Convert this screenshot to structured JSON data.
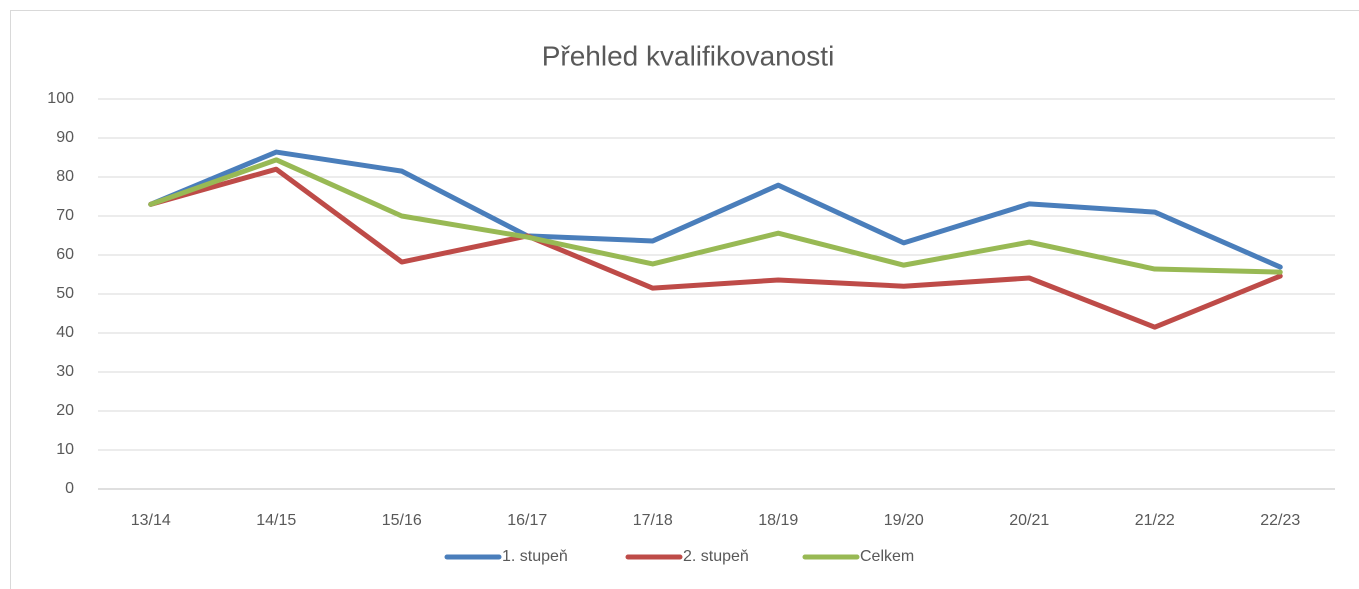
{
  "chart_data": {
    "type": "line",
    "title": "Přehled kvalifikovanosti",
    "categories": [
      "13/14",
      "14/15",
      "15/16",
      "16/17",
      "17/18",
      "18/19",
      "19/20",
      "20/21",
      "21/22",
      "22/23"
    ],
    "series": [
      {
        "name": "1. stupeň",
        "color": "#4a7ebb",
        "values": [
          73,
          86.4,
          81.5,
          64.9,
          63.6,
          77.9,
          63.1,
          73.1,
          71,
          56.9
        ]
      },
      {
        "name": "2. stupeň",
        "color": "#be4b48",
        "values": [
          73,
          82,
          58.2,
          64.9,
          51.5,
          53.6,
          52,
          54.1,
          41.5,
          54.6
        ]
      },
      {
        "name": "Celkem",
        "color": "#98b954",
        "values": [
          73,
          84.4,
          70,
          64.6,
          57.7,
          65.6,
          57.4,
          63.3,
          56.4,
          55.6
        ]
      }
    ],
    "ylim": [
      0,
      100
    ],
    "yticks": [
      0,
      10,
      20,
      30,
      40,
      50,
      60,
      70,
      80,
      90,
      100
    ],
    "grid": true,
    "legend": "bottom"
  }
}
